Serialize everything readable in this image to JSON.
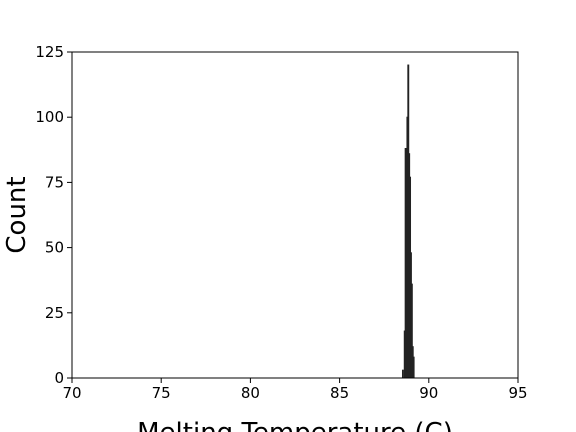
{
  "chart_data": {
    "type": "bar",
    "title": "",
    "xlabel": "Melting Temperature (C)",
    "ylabel": "Count",
    "xlim": [
      70,
      95
    ],
    "ylim": [
      0,
      125
    ],
    "xticks": [
      70,
      75,
      80,
      85,
      90,
      95
    ],
    "yticks": [
      0,
      25,
      50,
      75,
      100,
      125
    ],
    "grid": false,
    "bin_width": 0.05,
    "bins": [
      {
        "x": 88.55,
        "value": 3
      },
      {
        "x": 88.65,
        "value": 18
      },
      {
        "x": 88.7,
        "value": 88
      },
      {
        "x": 88.75,
        "value": 65
      },
      {
        "x": 88.8,
        "value": 100
      },
      {
        "x": 88.85,
        "value": 120
      },
      {
        "x": 88.9,
        "value": 86
      },
      {
        "x": 88.95,
        "value": 77
      },
      {
        "x": 89.0,
        "value": 48
      },
      {
        "x": 89.05,
        "value": 36
      },
      {
        "x": 89.1,
        "value": 12
      },
      {
        "x": 89.15,
        "value": 8
      }
    ],
    "colors": {
      "bar_fill": "#4a5cc0",
      "bar_edge": "#222222"
    }
  }
}
